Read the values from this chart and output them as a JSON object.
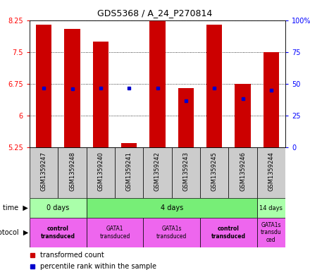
{
  "title": "GDS5368 / A_24_P270814",
  "samples": [
    "GSM1359247",
    "GSM1359248",
    "GSM1359240",
    "GSM1359241",
    "GSM1359242",
    "GSM1359243",
    "GSM1359245",
    "GSM1359246",
    "GSM1359244"
  ],
  "bar_bottoms": [
    5.25,
    5.25,
    5.25,
    5.25,
    5.25,
    5.25,
    5.25,
    5.25,
    5.25
  ],
  "bar_tops": [
    8.15,
    8.05,
    7.75,
    5.35,
    8.35,
    6.65,
    8.15,
    6.75,
    7.5
  ],
  "blue_dots": [
    6.65,
    6.63,
    6.65,
    6.65,
    6.65,
    6.35,
    6.65,
    6.4,
    6.6
  ],
  "ylim_left": [
    5.25,
    8.25
  ],
  "ylim_right": [
    0,
    100
  ],
  "yticks_left": [
    5.25,
    6.0,
    6.75,
    7.5,
    8.25
  ],
  "yticks_right": [
    0,
    25,
    50,
    75,
    100
  ],
  "ytick_labels_left": [
    "5.25",
    "6",
    "6.75",
    "7.5",
    "8.25"
  ],
  "ytick_labels_right": [
    "0",
    "25",
    "50",
    "75",
    "100%"
  ],
  "bar_color": "#cc0000",
  "dot_color": "#0000cc",
  "time_groups": [
    {
      "label": "0 days",
      "start": 0,
      "end": 2,
      "color": "#aaffaa"
    },
    {
      "label": "4 days",
      "start": 2,
      "end": 8,
      "color": "#77ee77"
    },
    {
      "label": "14 days",
      "start": 8,
      "end": 9,
      "color": "#aaffaa"
    }
  ],
  "protocol_groups": [
    {
      "label": "control\ntransduced",
      "start": 0,
      "end": 2,
      "color": "#ee66ee",
      "bold": true
    },
    {
      "label": "GATA1\ntransduced",
      "start": 2,
      "end": 4,
      "color": "#ee66ee",
      "bold": false
    },
    {
      "label": "GATA1s\ntransduced",
      "start": 4,
      "end": 6,
      "color": "#ee66ee",
      "bold": false
    },
    {
      "label": "control\ntransduced",
      "start": 6,
      "end": 8,
      "color": "#ee66ee",
      "bold": true
    },
    {
      "label": "GATA1s\ntransdu\nced",
      "start": 8,
      "end": 9,
      "color": "#ee66ee",
      "bold": false
    }
  ],
  "sample_bg_color": "#cccccc",
  "legend_items": [
    {
      "color": "#cc0000",
      "label": "transformed count"
    },
    {
      "color": "#0000cc",
      "label": "percentile rank within the sample"
    }
  ]
}
